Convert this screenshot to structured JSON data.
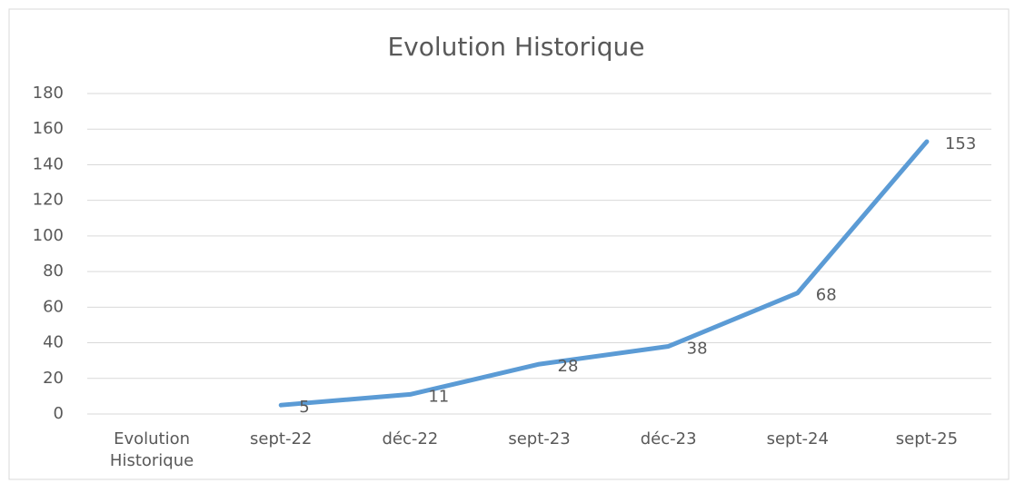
{
  "chart_data": {
    "type": "line",
    "title": "Evolution Historique",
    "categories": [
      "Evolution Historique",
      "sept-22",
      "déc-22",
      "sept-23",
      "déc-23",
      "sept-24",
      "sept-25"
    ],
    "values": [
      null,
      5,
      11,
      28,
      38,
      68,
      153
    ],
    "color": "#5b9bd5",
    "ylim": [
      0,
      180
    ],
    "yticks": [
      0,
      20,
      40,
      60,
      80,
      100,
      120,
      140,
      160,
      180
    ],
    "grid": true
  }
}
